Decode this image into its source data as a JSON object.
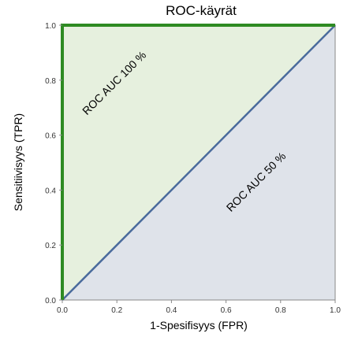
{
  "chart_data": {
    "type": "line",
    "title": "ROC-käyrät",
    "xlabel": "1-Spesifisyys (FPR)",
    "ylabel": "Sensitiivisyys (TPR)",
    "xlim": [
      0,
      1
    ],
    "ylim": [
      0,
      1
    ],
    "x_ticks": [
      "0.0",
      "0.2",
      "0.4",
      "0.6",
      "0.8",
      "1.0"
    ],
    "y_ticks": [
      "0.0",
      "0.2",
      "0.4",
      "0.6",
      "0.8",
      "1.0"
    ],
    "grid": false,
    "legend": "none",
    "series": [
      {
        "label": "ROC AUC 100 %",
        "color": "#2e8b22",
        "fill_color": "#e6f0de",
        "points": [
          [
            0,
            0
          ],
          [
            0,
            1
          ],
          [
            1,
            1
          ]
        ]
      },
      {
        "label": "ROC AUC 50 %",
        "color": "#4a6b9c",
        "fill_color": "#dfe3ea",
        "points": [
          [
            0,
            0
          ],
          [
            1,
            1
          ]
        ]
      }
    ],
    "annotations": [
      {
        "text": "ROC AUC 100 %",
        "x": 0.2,
        "y": 0.78,
        "rotation": -45
      },
      {
        "text": "ROC AUC 50 %",
        "x": 0.72,
        "y": 0.42,
        "rotation": -45
      }
    ]
  }
}
